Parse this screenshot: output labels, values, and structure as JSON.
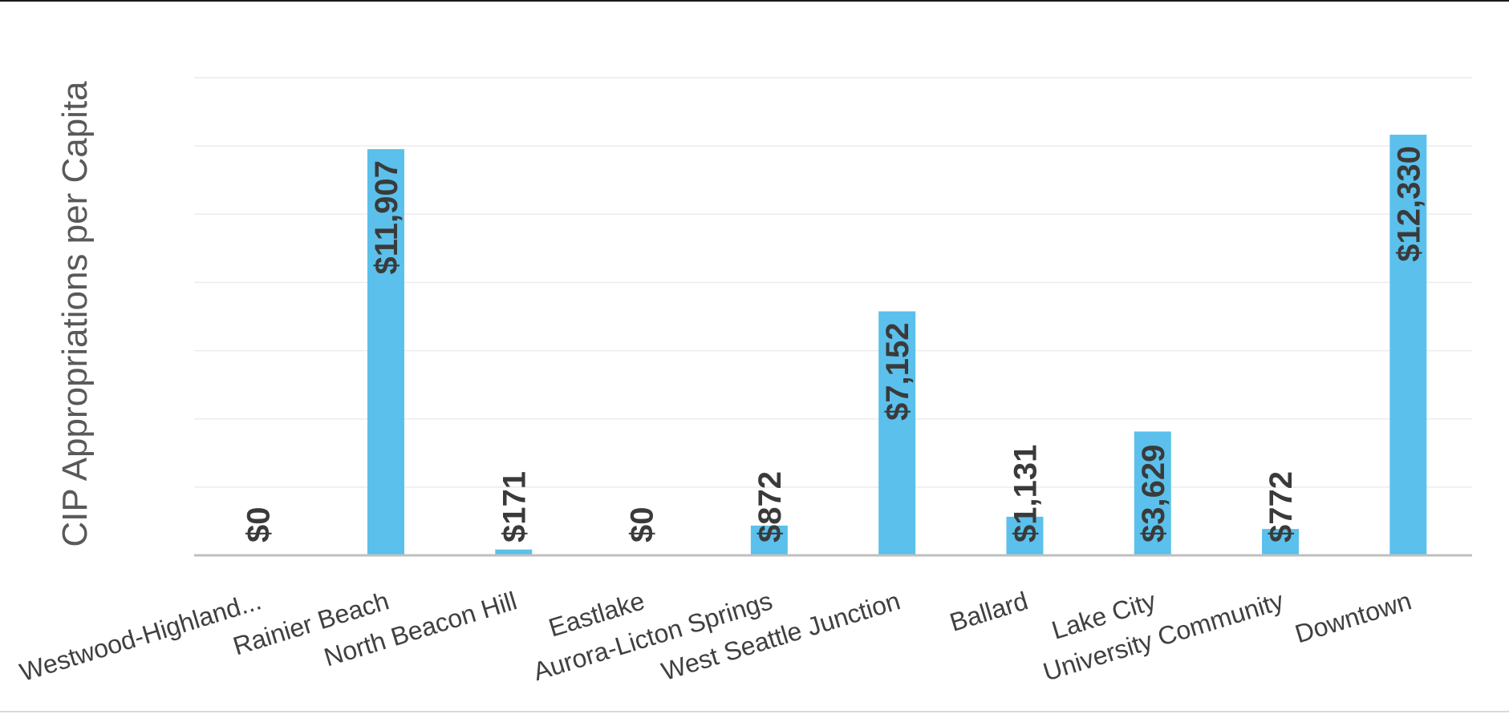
{
  "chart_data": {
    "type": "bar",
    "title": "",
    "xlabel": "",
    "ylabel": "CIP Appropriations per Capita",
    "categories": [
      "Westwood-Highland...",
      "Rainier Beach",
      "North Beacon Hill",
      "Eastlake",
      "Aurora-Licton Springs",
      "West Seattle Junction",
      "Ballard",
      "Lake City",
      "University Community",
      "Downtown"
    ],
    "values": [
      0,
      11907,
      171,
      0,
      872,
      7152,
      1131,
      3629,
      772,
      12330
    ],
    "value_labels": [
      "$0",
      "$11,907",
      "$171",
      "$0",
      "$872",
      "$7,152",
      "$1,131",
      "$3,629",
      "$772",
      "$12,330"
    ],
    "ylim": [
      0,
      14000
    ],
    "grid": true,
    "legend": "none",
    "colors": {
      "bar": "#5BC0EB",
      "grid": "#ececec",
      "axis": "#bfbfbf"
    }
  }
}
